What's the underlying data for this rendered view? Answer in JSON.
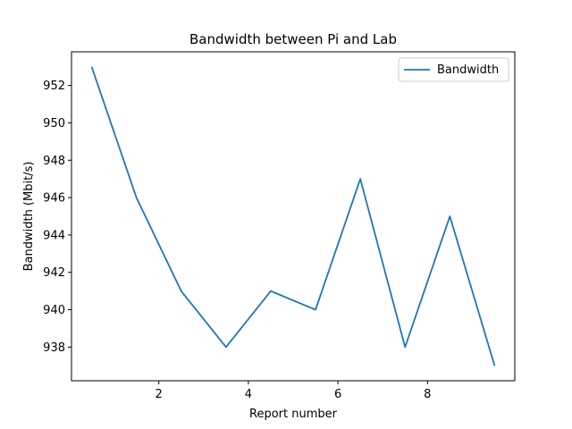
{
  "chart_data": {
    "type": "line",
    "title": "Bandwidth between Pi and Lab",
    "xlabel": "Report number",
    "ylabel": "Bandwidth (Mbit/s)",
    "xlim": [
      0.05,
      9.95
    ],
    "ylim": [
      936.2,
      953.8
    ],
    "xticks": [
      2,
      4,
      6,
      8
    ],
    "yticks": [
      938,
      940,
      942,
      944,
      946,
      948,
      950,
      952
    ],
    "grid": false,
    "legend_position": "upper right",
    "line_color": "#1f77b4",
    "series": [
      {
        "name": "Bandwidth",
        "x": [
          0.5,
          1.5,
          2.5,
          3.5,
          4.5,
          5.5,
          6.5,
          7.5,
          8.5,
          9.5
        ],
        "values": [
          953,
          946,
          941,
          938,
          941,
          940,
          947,
          938,
          945,
          937
        ]
      }
    ]
  }
}
